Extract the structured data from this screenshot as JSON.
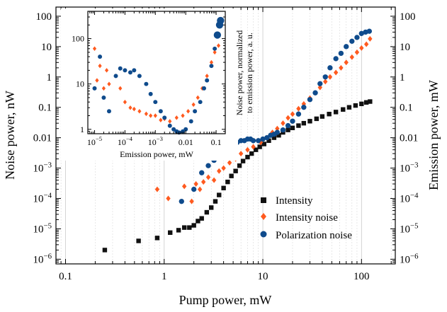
{
  "chart_data": [
    {
      "type": "scatter",
      "xlabel": "Pump power, mW",
      "ylabel_left": "Noise power, nW",
      "ylabel_right": "Emission power, mW",
      "x_scale": "log",
      "y_scale": "log",
      "xlim": [
        0.08,
        220
      ],
      "ylim": [
        7e-07,
        200
      ],
      "grid": "x-major-and-minor",
      "legend_placement": "bottom-right",
      "x_ticks": [
        {
          "value": 0.1,
          "label": "0.1"
        },
        {
          "value": 1,
          "label": "1"
        },
        {
          "value": 10,
          "label": "10"
        },
        {
          "value": 100,
          "label": "100"
        }
      ],
      "y_ticks": [
        {
          "value": 100,
          "label": "100",
          "exp": ""
        },
        {
          "value": 10,
          "label": "10",
          "exp": ""
        },
        {
          "value": 1,
          "label": "1",
          "exp": ""
        },
        {
          "value": 0.1,
          "label": "0.1",
          "exp": ""
        },
        {
          "value": 0.01,
          "label": "0.01",
          "exp": ""
        },
        {
          "value": 0.001,
          "label": "10",
          "exp": "−3"
        },
        {
          "value": 0.0001,
          "label": "10",
          "exp": "−4"
        },
        {
          "value": 1e-05,
          "label": "10",
          "exp": "−5"
        },
        {
          "value": 1e-06,
          "label": "10",
          "exp": "−6"
        }
      ],
      "series": [
        {
          "name": "Intensity",
          "marker": "square",
          "color": "#111111",
          "x": [
            0.25,
            0.55,
            0.85,
            1.15,
            1.4,
            1.6,
            1.8,
            2.0,
            2.2,
            2.4,
            2.7,
            3.0,
            3.3,
            3.6,
            4.0,
            4.4,
            4.8,
            5.3,
            5.8,
            6.3,
            7.0,
            7.7,
            8.5,
            9.3,
            10.3,
            11.5,
            13,
            14.5,
            16,
            18,
            20,
            23,
            26,
            30,
            35,
            40,
            47,
            55,
            65,
            75,
            87,
            100,
            112,
            122
          ],
          "y": [
            2e-06,
            4e-06,
            5e-06,
            7.5e-06,
            9e-06,
            1.1e-05,
            1.1e-05,
            1.3e-05,
            1.8e-05,
            2.2e-05,
            3.5e-05,
            5e-05,
            8e-05,
            0.00013,
            0.00022,
            0.00035,
            0.00055,
            0.0008,
            0.0012,
            0.0017,
            0.0023,
            0.003,
            0.004,
            0.005,
            0.0062,
            0.008,
            0.01,
            0.012,
            0.015,
            0.018,
            0.021,
            0.025,
            0.03,
            0.035,
            0.042,
            0.05,
            0.06,
            0.07,
            0.085,
            0.1,
            0.115,
            0.13,
            0.145,
            0.155
          ]
        },
        {
          "name": "Intensity noise",
          "marker": "diamond",
          "color": "#ff5a1f",
          "x": [
            0.85,
            1.1,
            1.6,
            1.9,
            2.1,
            2.3,
            2.5,
            2.8,
            3.2,
            3.6,
            4.0,
            4.6,
            5.3,
            6.0,
            7.0,
            8.0,
            9.5,
            11,
            12.5,
            14,
            16,
            18,
            20,
            23,
            26,
            30,
            34,
            38,
            43,
            48,
            55,
            62,
            70,
            80,
            90,
            100,
            112,
            122
          ],
          "y": [
            0.0002,
            0.0001,
            0.00025,
            8e-05,
            0.0003,
            0.0002,
            0.00035,
            0.0005,
            0.0004,
            0.0008,
            0.001,
            0.0015,
            0.002,
            0.003,
            0.004,
            0.005,
            0.007,
            0.01,
            0.015,
            0.02,
            0.03,
            0.045,
            0.06,
            0.09,
            0.13,
            0.2,
            0.3,
            0.45,
            0.7,
            1.0,
            1.4,
            2.0,
            3.0,
            4.5,
            6.5,
            9.0,
            12,
            18
          ]
        },
        {
          "name": "Polarization noise",
          "marker": "circle",
          "color": "#0f4b8c",
          "x": [
            1.5,
            2.0,
            2.4,
            2.8,
            3.2,
            3.6,
            4.0,
            4.5,
            5.0,
            5.5,
            6.0,
            6.5,
            7.0,
            7.5,
            8.0,
            9.0,
            10,
            11,
            12,
            13,
            14,
            16,
            18,
            20,
            23,
            26,
            30,
            34,
            38,
            43,
            48,
            55,
            62,
            70,
            80,
            90,
            100,
            110,
            120
          ],
          "y": [
            8e-05,
            0.0002,
            0.0007,
            0.0012,
            0.0018,
            0.0025,
            0.0035,
            0.005,
            0.006,
            0.007,
            0.008,
            0.008,
            0.009,
            0.009,
            0.008,
            0.008,
            0.009,
            0.01,
            0.012,
            0.013,
            0.015,
            0.018,
            0.025,
            0.035,
            0.06,
            0.1,
            0.18,
            0.3,
            0.6,
            1.0,
            2.0,
            4.0,
            6.0,
            10,
            15,
            20,
            27,
            30,
            32
          ]
        }
      ]
    },
    {
      "type": "scatter",
      "xlabel": "Emission power, mW",
      "ylabel_lines": [
        "Noise power, normalized",
        "to emission power, a. u."
      ],
      "x_scale": "log",
      "y_scale": "log",
      "xlim": [
        6e-06,
        0.2
      ],
      "ylim": [
        0.8,
        400
      ],
      "x_ticks": [
        {
          "value": 1e-05,
          "label": "10",
          "exp": "−5"
        },
        {
          "value": 0.0001,
          "label": "10",
          "exp": "−4"
        },
        {
          "value": 0.001,
          "label": "10",
          "exp": "−3"
        },
        {
          "value": 0.01,
          "label": "0.01",
          "exp": ""
        },
        {
          "value": 0.1,
          "label": "0.1",
          "exp": ""
        }
      ],
      "y_ticks": [
        {
          "value": 1,
          "label": "1"
        },
        {
          "value": 10,
          "label": "10"
        },
        {
          "value": 100,
          "label": "100"
        }
      ],
      "series": [
        {
          "name": "Intensity noise (normalized)",
          "marker": "diamond",
          "color": "#ff5a1f",
          "x": [
            1e-05,
            1.2e-05,
            1.5e-05,
            2e-05,
            2.5e-05,
            3e-05,
            5e-05,
            7e-05,
            0.0001,
            0.00015,
            0.0002,
            0.0003,
            0.0005,
            0.0007,
            0.001,
            0.0015,
            0.002,
            0.003,
            0.005,
            0.008,
            0.012,
            0.018,
            0.025,
            0.035,
            0.05,
            0.07,
            0.09,
            0.12
          ],
          "y": [
            60,
            12,
            25,
            8,
            20,
            10,
            15,
            8,
            4,
            3,
            2.8,
            2.5,
            2.2,
            2.0,
            2.0,
            1.6,
            1.7,
            1.5,
            1.8,
            2.0,
            2.5,
            3.5,
            5,
            8,
            15,
            30,
            50,
            70
          ]
        },
        {
          "name": "Polarization noise (normalized)",
          "marker": "circle",
          "color": "#0f4b8c",
          "x": [
            1e-05,
            1.5e-05,
            2e-05,
            3e-05,
            5e-05,
            7e-05,
            0.0001,
            0.00015,
            0.0002,
            0.0003,
            0.0005,
            0.0007,
            0.001,
            0.0015,
            0.002,
            0.003,
            0.004,
            0.005,
            0.006,
            0.008,
            0.01,
            0.015,
            0.02,
            0.03,
            0.04,
            0.05,
            0.07,
            0.09,
            0.11,
            0.13,
            0.14
          ],
          "y": [
            8,
            40,
            5,
            2.5,
            15,
            22,
            20,
            18,
            20,
            15,
            10,
            6,
            4,
            2.5,
            1.8,
            1.2,
            1.0,
            0.9,
            0.85,
            0.9,
            1.0,
            1.5,
            2.5,
            4,
            8,
            12,
            25,
            60,
            120,
            200,
            250
          ]
        }
      ]
    }
  ]
}
